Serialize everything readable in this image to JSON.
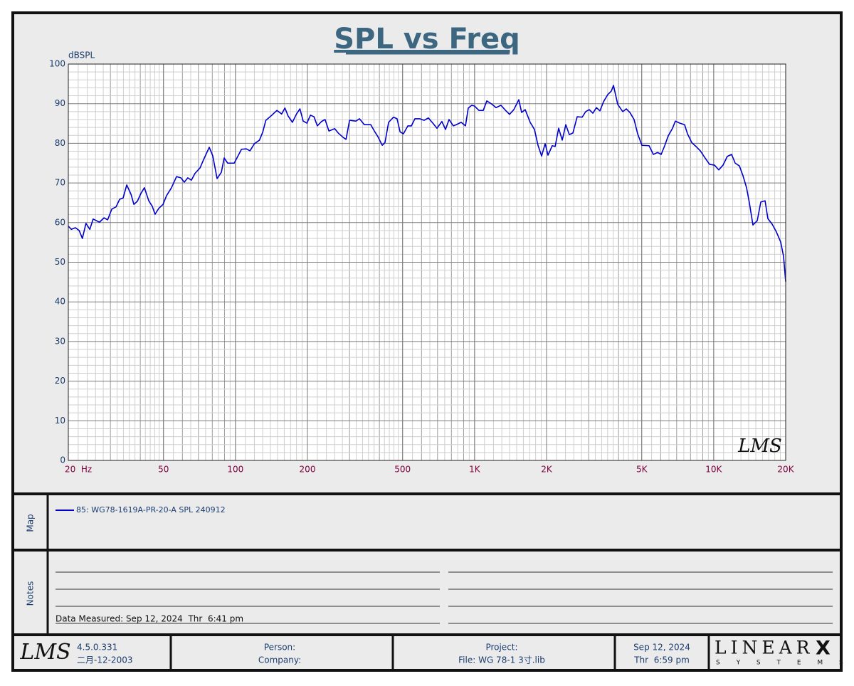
{
  "chart_data": {
    "type": "line",
    "title": "SPL vs Freq",
    "y_label": "dBSPL",
    "xlim": [
      20,
      20000
    ],
    "xscale": "log",
    "xticks": [
      {
        "value": 20,
        "label": "20  Hz"
      },
      50,
      100,
      200,
      500,
      {
        "value": 1000,
        "label": "1K"
      },
      {
        "value": 2000,
        "label": "2K"
      },
      {
        "value": 5000,
        "label": "5K"
      },
      {
        "value": 10000,
        "label": "10K"
      },
      {
        "value": 20000,
        "label": "20K"
      }
    ],
    "ylim": [
      0,
      100
    ],
    "yticks": [
      0,
      10,
      20,
      30,
      40,
      50,
      60,
      70,
      80,
      90,
      100
    ],
    "grid": true,
    "minor_grid": true,
    "x": [
      20,
      20.6,
      21.4,
      22.2,
      22.9,
      23.7,
      24.6,
      25.4,
      27.0,
      28.2,
      29.2,
      30.4,
      31.7,
      32.8,
      33.9,
      35.1,
      36.6,
      37.6,
      38.9,
      40.2,
      41.6,
      43.4,
      44.9,
      46.1,
      47.8,
      49.8,
      51.5,
      54.0,
      56.7,
      59.1,
      61.1,
      63.2,
      65.4,
      67.7,
      71.1,
      73.6,
      77.7,
      80.4,
      83.8,
      87.3,
      89.7,
      92.8,
      98.8,
      106,
      111,
      115,
      120,
      126,
      130,
      134,
      142,
      149,
      156,
      161,
      166,
      173,
      180,
      186,
      192,
      199,
      206,
      213,
      220,
      229,
      237,
      246,
      260,
      269,
      282,
      290,
      300,
      319,
      330,
      346,
      368,
      381,
      394,
      411,
      422,
      437,
      458,
      474,
      488,
      504,
      526,
      544,
      563,
      591,
      615,
      641,
      673,
      696,
      730,
      756,
      782,
      815,
      838,
      879,
      916,
      941,
      974,
      1000,
      1043,
      1087,
      1125,
      1180,
      1229,
      1289,
      1353,
      1400,
      1459,
      1531,
      1573,
      1628,
      1708,
      1780,
      1842,
      1907,
      1973,
      2028,
      2113,
      2172,
      2247,
      2326,
      2407,
      2490,
      2577,
      2686,
      2818,
      2916,
      3018,
      3123,
      3232,
      3344,
      3461,
      3606,
      3732,
      3810,
      3970,
      4166,
      4309,
      4459,
      4646,
      4808,
      5010,
      5367,
      5592,
      5827,
      6030,
      6238,
      6456,
      6727,
      6914,
      7204,
      7558,
      7768,
      8094,
      8434,
      8789,
      9159,
      9608,
      10080,
      10500,
      10940,
      11400,
      11880,
      12300,
      12810,
      13260,
      13720,
      14100,
      14590,
      15210,
      15740,
      16400,
      16850,
      17560,
      18300,
      19060,
      19590,
      20000
    ],
    "series": [
      {
        "name": "85: WG78-1619A-PR-20-A SPL 240912",
        "color": "#0000cc",
        "values": [
          59.1,
          58.3,
          58.7,
          58,
          56,
          59.8,
          58.3,
          60.9,
          60.1,
          61.2,
          60.7,
          63.4,
          64,
          65.9,
          66.2,
          69.5,
          67.1,
          64.6,
          65.4,
          67.3,
          68.8,
          65.5,
          64.1,
          62.1,
          63.6,
          64.6,
          66.8,
          68.8,
          71.6,
          71.3,
          70.2,
          71.3,
          70.7,
          72.4,
          73.8,
          75.9,
          79,
          76.8,
          71.1,
          72.7,
          76.3,
          75,
          75,
          78.5,
          78.6,
          78.1,
          79.9,
          80.8,
          82.8,
          85.8,
          87.1,
          88.3,
          87.4,
          88.9,
          86.9,
          85.3,
          87.4,
          88.7,
          85.6,
          85.1,
          87.1,
          86.7,
          84.4,
          85.5,
          86,
          83.1,
          83.7,
          82.6,
          81.5,
          81,
          85.8,
          85.6,
          86.2,
          84.7,
          84.7,
          83.1,
          81.7,
          79.5,
          80.2,
          85.3,
          86.6,
          86.2,
          82.9,
          82.4,
          84.4,
          84.4,
          86.2,
          86.2,
          85.8,
          86.4,
          84.9,
          83.8,
          85.5,
          83.5,
          86,
          84.4,
          84.7,
          85.3,
          84.4,
          88.9,
          89.6,
          89.4,
          88.3,
          88.3,
          90.7,
          89.9,
          89,
          89.6,
          88.2,
          87.3,
          88.5,
          91,
          87.8,
          88.5,
          85.3,
          83.5,
          79.5,
          76.8,
          79.9,
          77,
          79.4,
          79.2,
          83.8,
          80.8,
          84.7,
          82.2,
          82.6,
          86.7,
          86.6,
          88,
          88.5,
          87.6,
          89,
          88.2,
          90.5,
          92.3,
          93.2,
          94.6,
          89.8,
          88,
          88.7,
          87.8,
          86,
          82.4,
          79.5,
          79.4,
          77.2,
          77.7,
          77.2,
          79.4,
          81.9,
          83.8,
          85.6,
          85.1,
          84.7,
          82.4,
          80.2,
          79.2,
          78.1,
          76.5,
          74.7,
          74.5,
          73.3,
          74.5,
          76.7,
          77.2,
          75,
          74.3,
          71.8,
          68.8,
          65,
          59.4,
          60.5,
          65.2,
          65.5,
          61,
          59.6,
          57.6,
          55.1,
          51.5,
          45.1
        ]
      }
    ],
    "watermark": "LMS"
  },
  "map_label": "Map",
  "notes_label": "Notes",
  "data_measured": "Data Measured: Sep 12, 2024  Thr  6:41 pm",
  "footer": {
    "logo": "LMS",
    "version": "4.5.0.331",
    "version_date": "二月-12-2003",
    "person": "Person:",
    "company": "Company:",
    "project": "Project:",
    "file": "File: WG 78-1 3寸.lib",
    "date": "Sep 12, 2024",
    "time": "Thr  6:59 pm",
    "brand": "LINEAR",
    "brand_x": "X",
    "brand_sub": "S Y S T E M S"
  }
}
